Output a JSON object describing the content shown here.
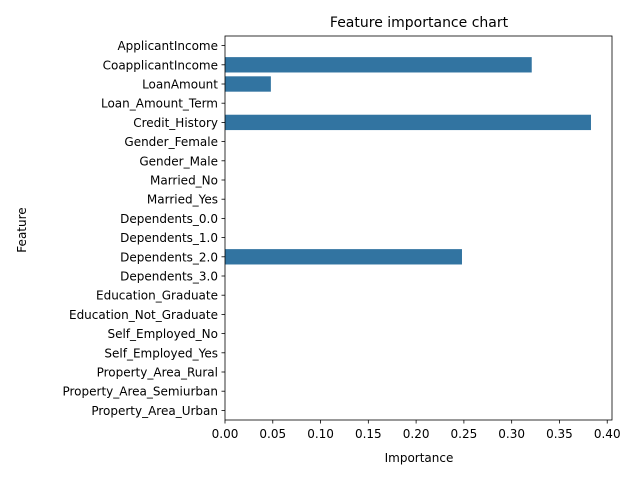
{
  "chart_data": {
    "type": "bar",
    "orientation": "horizontal",
    "title": "Feature importance chart",
    "xlabel": "Importance",
    "ylabel": "Feature",
    "xlim": [
      0,
      0.405
    ],
    "xticks": [
      "0.00",
      "0.05",
      "0.10",
      "0.15",
      "0.20",
      "0.25",
      "0.30",
      "0.35",
      "0.40"
    ],
    "xtick_values": [
      0,
      0.05,
      0.1,
      0.15,
      0.2,
      0.25,
      0.3,
      0.35,
      0.4
    ],
    "bar_color": "#3274a1",
    "grid": false,
    "categories": [
      "ApplicantIncome",
      "CoapplicantIncome",
      "LoanAmount",
      "Loan_Amount_Term",
      "Credit_History",
      "Gender_Female",
      "Gender_Male",
      "Married_No",
      "Married_Yes",
      "Dependents_0.0",
      "Dependents_1.0",
      "Dependents_2.0",
      "Dependents_3.0",
      "Education_Graduate",
      "Education_Not_Graduate",
      "Self_Employed_No",
      "Self_Employed_Yes",
      "Property_Area_Rural",
      "Property_Area_Semiurban",
      "Property_Area_Urban"
    ],
    "values": [
      0,
      0.321,
      0.048,
      0,
      0.383,
      0,
      0,
      0,
      0,
      0,
      0,
      0.248,
      0,
      0,
      0,
      0,
      0,
      0,
      0,
      0
    ]
  }
}
